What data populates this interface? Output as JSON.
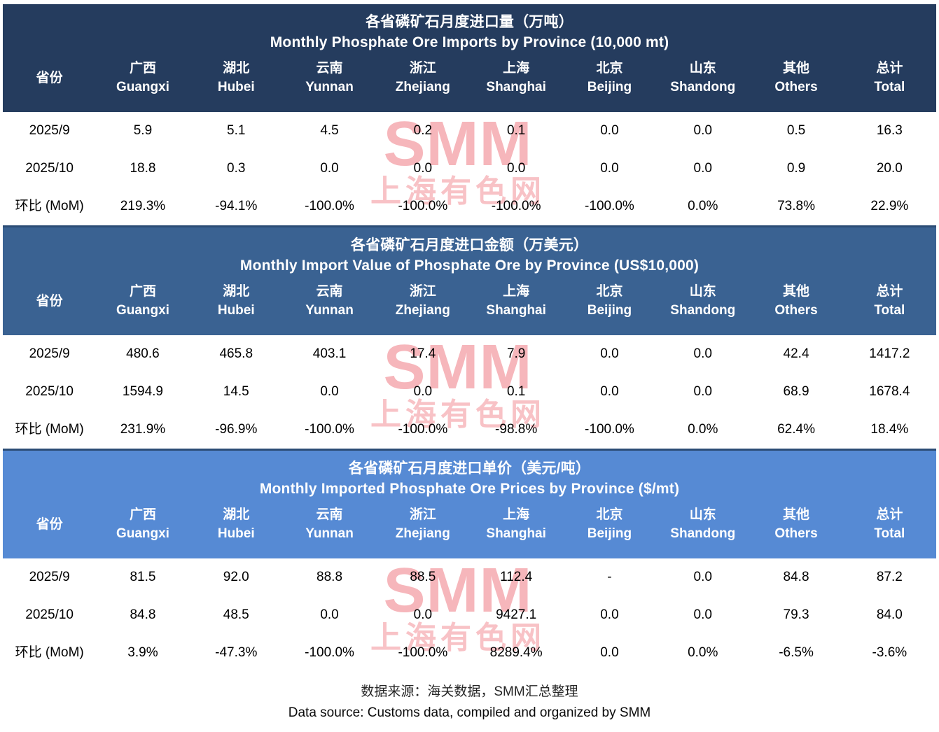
{
  "chart_data": [
    {
      "type": "table",
      "title": "各省磷矿石月度进口量（万吨）",
      "subtitle": "Monthly Phosphate Ore Imports by Province (10,000 mt)",
      "header_bg": "#253C5E",
      "row_header_label": "省份",
      "columns": [
        {
          "zh": "广西",
          "en": "Guangxi"
        },
        {
          "zh": "湖北",
          "en": "Hubei"
        },
        {
          "zh": "云南",
          "en": "Yunnan"
        },
        {
          "zh": "浙江",
          "en": "Zhejiang"
        },
        {
          "zh": "上海",
          "en": "Shanghai"
        },
        {
          "zh": "北京",
          "en": "Beijing"
        },
        {
          "zh": "山东",
          "en": "Shandong"
        },
        {
          "zh": "其他",
          "en": "Others"
        },
        {
          "zh": "总计",
          "en": "Total"
        }
      ],
      "rows": [
        {
          "label": "2025/9",
          "values": [
            "5.9",
            "5.1",
            "4.5",
            "0.2",
            "0.1",
            "0.0",
            "0.0",
            "0.5",
            "16.3"
          ]
        },
        {
          "label": "2025/10",
          "values": [
            "18.8",
            "0.3",
            "0.0",
            "0.0",
            "0.0",
            "0.0",
            "0.0",
            "0.9",
            "20.0"
          ]
        },
        {
          "label": "环比 (MoM)",
          "values": [
            "219.3%",
            "-94.1%",
            "-100.0%",
            "-100.0%",
            "-100.0%",
            "-100.0%",
            "0.0%",
            "73.8%",
            "22.9%"
          ]
        }
      ]
    },
    {
      "type": "table",
      "title": "各省磷矿石月度进口金额（万美元）",
      "subtitle": "Monthly Import Value of Phosphate Ore by Province (US$10,000)",
      "header_bg": "#3A6292",
      "row_header_label": "省份",
      "columns": [
        {
          "zh": "广西",
          "en": "Guangxi"
        },
        {
          "zh": "湖北",
          "en": "Hubei"
        },
        {
          "zh": "云南",
          "en": "Yunnan"
        },
        {
          "zh": "浙江",
          "en": "Zhejiang"
        },
        {
          "zh": "上海",
          "en": "Shanghai"
        },
        {
          "zh": "北京",
          "en": "Beijing"
        },
        {
          "zh": "山东",
          "en": "Shandong"
        },
        {
          "zh": "其他",
          "en": "Others"
        },
        {
          "zh": "总计",
          "en": "Total"
        }
      ],
      "rows": [
        {
          "label": "2025/9",
          "values": [
            "480.6",
            "465.8",
            "403.1",
            "17.4",
            "7.9",
            "0.0",
            "0.0",
            "42.4",
            "1417.2"
          ]
        },
        {
          "label": "2025/10",
          "values": [
            "1594.9",
            "14.5",
            "0.0",
            "0.0",
            "0.1",
            "0.0",
            "0.0",
            "68.9",
            "1678.4"
          ]
        },
        {
          "label": "环比 (MoM)",
          "values": [
            "231.9%",
            "-96.9%",
            "-100.0%",
            "-100.0%",
            "-98.8%",
            "-100.0%",
            "0.0%",
            "62.4%",
            "18.4%"
          ]
        }
      ]
    },
    {
      "type": "table",
      "title": "各省磷矿石月度进口单价（美元/吨）",
      "subtitle": "Monthly Imported Phosphate Ore Prices by Province ($/mt)",
      "header_bg": "#568AD4",
      "row_header_label": "省份",
      "columns": [
        {
          "zh": "广西",
          "en": "Guangxi"
        },
        {
          "zh": "湖北",
          "en": "Hubei"
        },
        {
          "zh": "云南",
          "en": "Yunnan"
        },
        {
          "zh": "浙江",
          "en": "Zhejiang"
        },
        {
          "zh": "上海",
          "en": "Shanghai"
        },
        {
          "zh": "北京",
          "en": "Beijing"
        },
        {
          "zh": "山东",
          "en": "Shandong"
        },
        {
          "zh": "其他",
          "en": "Others"
        },
        {
          "zh": "总计",
          "en": "Total"
        }
      ],
      "rows": [
        {
          "label": "2025/9",
          "values": [
            "81.5",
            "92.0",
            "88.8",
            "88.5",
            "112.4",
            "-",
            "0.0",
            "84.8",
            "87.2"
          ]
        },
        {
          "label": "2025/10",
          "values": [
            "84.8",
            "48.5",
            "0.0",
            "0.0",
            "9427.1",
            "0.0",
            "0.0",
            "79.3",
            "84.0"
          ]
        },
        {
          "label": "环比 (MoM)",
          "values": [
            "3.9%",
            "-47.3%",
            "-100.0%",
            "-100.0%",
            "8289.4%",
            "0.0",
            "0.0%",
            "-6.5%",
            "-3.6%"
          ]
        }
      ]
    }
  ],
  "watermark": {
    "line1": "SMM",
    "line2": "上海有色网",
    "color_logo": "#f6b6bb",
    "color_cn": "#f8c2c6"
  },
  "annotations": {
    "cell_flag": {
      "table_index": 2,
      "row_index": 0,
      "column_index": 5,
      "shape": "corner-triangle",
      "color": "#1e7d1e"
    }
  },
  "footer": {
    "zh": "数据来源：海关数据，SMM汇总整理",
    "en": "Data source: Customs data, compiled and organized by SMM"
  }
}
